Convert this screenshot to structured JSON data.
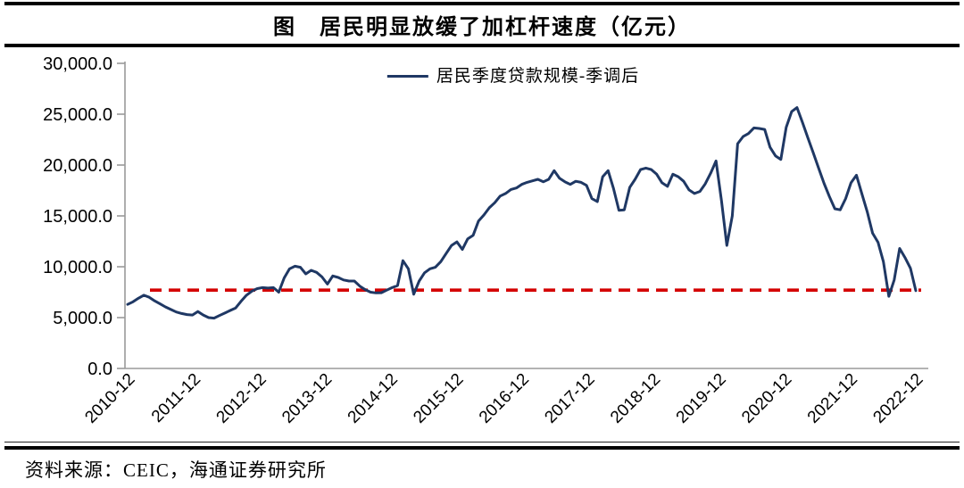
{
  "header": {
    "title": "图　居民明显放缓了加杠杆速度（亿元）"
  },
  "footer": {
    "source": "资料来源：CEIC，海通证券研究所"
  },
  "colors": {
    "series_line": "#1f3864",
    "reference_line": "#d40000",
    "axis": "#9a9a9a",
    "text": "#000000",
    "rule": "#000000"
  },
  "chart_data": {
    "type": "line",
    "title": "居民明显放缓了加杠杆速度（亿元）",
    "unit": "亿元",
    "legend_position": "top-center",
    "grid": false,
    "ylim": [
      0,
      30000
    ],
    "ytick_step": 5000,
    "ytick_labels": [
      "0.0",
      "5,000.0",
      "10,000.0",
      "15,000.0",
      "20,000.0",
      "25,000.0",
      "30,000.0"
    ],
    "xtick_labels": [
      "2010-12",
      "2011-12",
      "2012-12",
      "2013-12",
      "2014-12",
      "2015-12",
      "2016-12",
      "2017-12",
      "2018-12",
      "2019-12",
      "2020-12",
      "2021-12",
      "2022-12"
    ],
    "x_start": "2010-12",
    "x_end": "2022-12",
    "x_frequency": "monthly",
    "reference_line": {
      "value": 7700,
      "color": "#d40000",
      "style": "dashed"
    },
    "series": [
      {
        "name": "居民季度贷款规模-季调后",
        "color": "#1f3864",
        "values": [
          6300,
          6550,
          6900,
          7200,
          7000,
          6650,
          6350,
          6050,
          5800,
          5550,
          5400,
          5300,
          5250,
          5600,
          5250,
          5000,
          4950,
          5200,
          5450,
          5700,
          5950,
          6600,
          7200,
          7600,
          7850,
          7950,
          7900,
          7950,
          7500,
          8900,
          9800,
          10050,
          9950,
          9300,
          9650,
          9450,
          9000,
          8300,
          9100,
          8950,
          8700,
          8600,
          8600,
          8100,
          7750,
          7500,
          7430,
          7450,
          7700,
          7950,
          8150,
          10600,
          9800,
          7300,
          8600,
          9400,
          9800,
          9950,
          10500,
          11300,
          12100,
          12450,
          11700,
          12750,
          13100,
          14500,
          15100,
          15800,
          16300,
          16950,
          17200,
          17600,
          17750,
          18100,
          18300,
          18450,
          18600,
          18350,
          18600,
          19450,
          18700,
          18350,
          18100,
          18400,
          18300,
          18000,
          16700,
          16400,
          18850,
          19450,
          17700,
          15550,
          15600,
          17800,
          18600,
          19550,
          19700,
          19550,
          19100,
          18250,
          17900,
          19100,
          18850,
          18400,
          17550,
          17200,
          17400,
          18150,
          19200,
          20400,
          16500,
          12100,
          15000,
          22100,
          22800,
          23100,
          23650,
          23600,
          23500,
          21750,
          20900,
          20550,
          23700,
          25250,
          25650,
          24200,
          22700,
          21200,
          19700,
          18200,
          16900,
          15700,
          15600,
          16700,
          18250,
          19000,
          17200,
          15400,
          13300,
          12400,
          10500,
          7100,
          8700,
          11800,
          10900,
          9850,
          7650
        ]
      }
    ]
  }
}
